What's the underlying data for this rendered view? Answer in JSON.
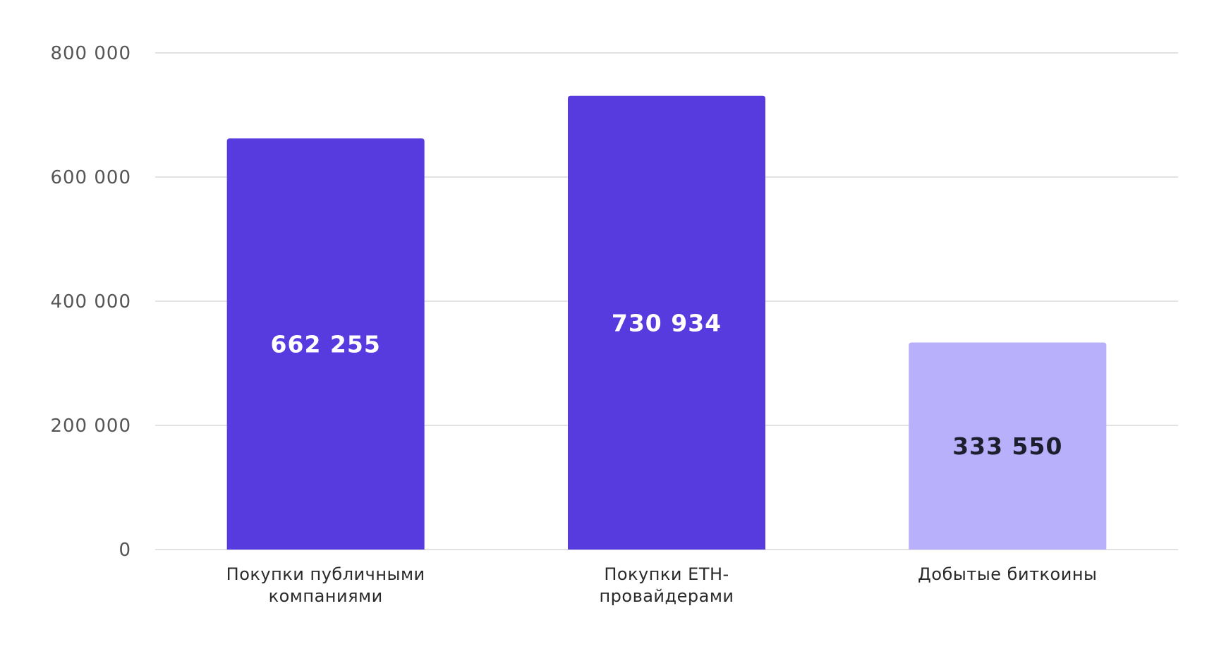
{
  "chart_data": {
    "type": "bar",
    "title": "",
    "xlabel": "",
    "ylabel": "",
    "categories": [
      [
        "Покупки публичными",
        "компаниями"
      ],
      [
        "Покупки ETH-",
        "провайдерами"
      ],
      [
        "Добытые биткоины"
      ]
    ],
    "values": [
      662255,
      730934,
      333550
    ],
    "value_labels": [
      "662 255",
      "730 934",
      "333 550"
    ],
    "ylim": [
      0,
      800000
    ],
    "yticks": [
      0,
      200000,
      400000,
      600000,
      800000
    ],
    "ytick_labels": [
      "0",
      "200 000",
      "400 000",
      "600 000",
      "800 000"
    ],
    "grid": true,
    "legend": "none",
    "colors": {
      "bars": [
        "#583bdf",
        "#583bdf",
        "#b9b0fb"
      ],
      "value_text": [
        "#ffffff",
        "#ffffff",
        "#1e1e2e"
      ],
      "grid": "#d9d9d9"
    }
  }
}
